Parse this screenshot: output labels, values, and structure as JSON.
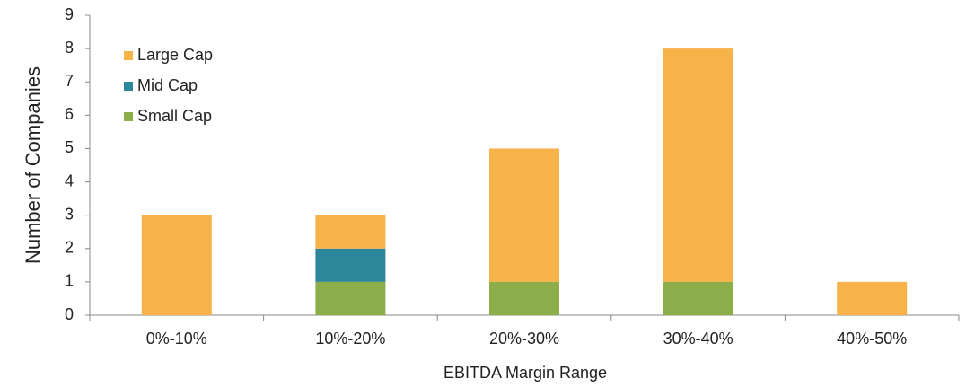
{
  "chart_data": {
    "type": "stacked_bar",
    "xlabel": "EBITDA Margin Range",
    "ylabel": "Number of Companies",
    "categories": [
      "0%-10%",
      "10%-20%",
      "20%-30%",
      "30%-40%",
      "40%-50%"
    ],
    "series": [
      {
        "name": "Large Cap",
        "color": "#f7b24a",
        "values": [
          3,
          1,
          4,
          7,
          1
        ]
      },
      {
        "name": "Mid Cap",
        "color": "#2e869a",
        "values": [
          0,
          1,
          0,
          0,
          0
        ]
      },
      {
        "name": "Small Cap",
        "color": "#8bae4a",
        "values": [
          0,
          1,
          1,
          1,
          0
        ]
      }
    ],
    "ylim": [
      0,
      9
    ],
    "yticks": [
      0,
      1,
      2,
      3,
      4,
      5,
      6,
      7,
      8,
      9
    ],
    "legend": "upper left"
  }
}
